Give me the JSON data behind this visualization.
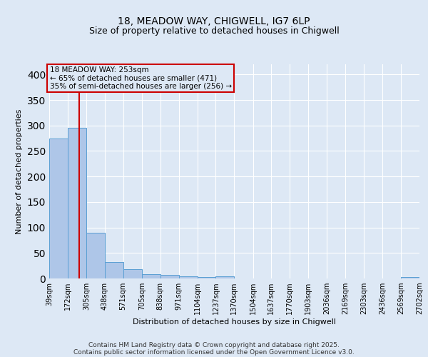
{
  "title1": "18, MEADOW WAY, CHIGWELL, IG7 6LP",
  "title2": "Size of property relative to detached houses in Chigwell",
  "xlabel": "Distribution of detached houses by size in Chigwell",
  "ylabel": "Number of detached properties",
  "bin_labels": [
    "39sqm",
    "172sqm",
    "305sqm",
    "438sqm",
    "571sqm",
    "705sqm",
    "838sqm",
    "971sqm",
    "1104sqm",
    "1237sqm",
    "1370sqm",
    "1504sqm",
    "1637sqm",
    "1770sqm",
    "1903sqm",
    "2036sqm",
    "2169sqm",
    "2303sqm",
    "2436sqm",
    "2569sqm",
    "2702sqm"
  ],
  "bin_edges": [
    39,
    172,
    305,
    438,
    571,
    705,
    838,
    971,
    1104,
    1237,
    1370,
    1504,
    1637,
    1770,
    1903,
    2036,
    2169,
    2303,
    2436,
    2569,
    2702
  ],
  "bar_heights": [
    275,
    295,
    90,
    32,
    18,
    8,
    7,
    4,
    3,
    4,
    0,
    0,
    0,
    0,
    0,
    0,
    0,
    0,
    0,
    3
  ],
  "bar_color": "#aec6e8",
  "bar_edge_color": "#5a9fd4",
  "property_size": 253,
  "red_line_color": "#cc0000",
  "annotation_line1": "18 MEADOW WAY: 253sqm",
  "annotation_line2": "← 65% of detached houses are smaller (471)",
  "annotation_line3": "35% of semi-detached houses are larger (256) →",
  "annotation_box_color": "#cc0000",
  "ylim": [
    0,
    420
  ],
  "yticks": [
    0,
    50,
    100,
    150,
    200,
    250,
    300,
    350,
    400
  ],
  "footer1": "Contains HM Land Registry data © Crown copyright and database right 2025.",
  "footer2": "Contains public sector information licensed under the Open Government Licence v3.0.",
  "background_color": "#dde8f5",
  "grid_color": "#ffffff",
  "title_fontsize": 10,
  "subtitle_fontsize": 9,
  "axis_label_fontsize": 8,
  "tick_fontsize": 7,
  "annotation_fontsize": 7.5,
  "footer_fontsize": 6.5
}
